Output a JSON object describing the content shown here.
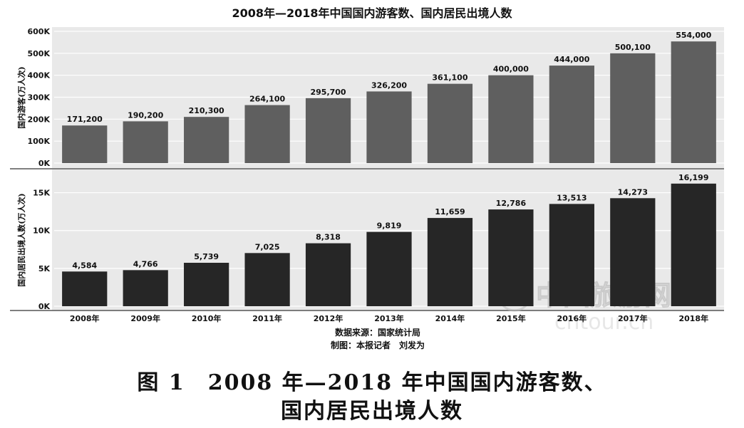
{
  "header": {
    "title": "2008年—2018年中国国内游客数、国内居民出境人数"
  },
  "chart_data": [
    {
      "type": "bar",
      "ylabel": "国内游客(万人次)",
      "categories": [
        "2008年",
        "2009年",
        "2010年",
        "2011年",
        "2012年",
        "2013年",
        "2014年",
        "2015年",
        "2016年",
        "2017年",
        "2018年"
      ],
      "values": [
        171200,
        190200,
        210300,
        264100,
        295700,
        326200,
        361100,
        400000,
        444000,
        500100,
        554000
      ],
      "value_labels": [
        "171,200",
        "190,200",
        "210,300",
        "264,100",
        "295,700",
        "326,200",
        "361,100",
        "400,000",
        "444,000",
        "500,100",
        "554,000"
      ],
      "ylim": [
        0,
        600000
      ],
      "yticks": [
        0,
        100000,
        200000,
        300000,
        400000,
        500000,
        600000
      ],
      "ytick_labels": [
        "0K",
        "100K",
        "200K",
        "300K",
        "400K",
        "500K",
        "600K"
      ],
      "grid": true,
      "bar_color": "#5f5f5f"
    },
    {
      "type": "bar",
      "ylabel": "国内居民出境人数(万人次)",
      "categories": [
        "2008年",
        "2009年",
        "2010年",
        "2011年",
        "2012年",
        "2013年",
        "2014年",
        "2015年",
        "2016年",
        "2017年",
        "2018年"
      ],
      "values": [
        4584,
        4766,
        5739,
        7025,
        8318,
        9819,
        11659,
        12786,
        13513,
        14273,
        16199
      ],
      "value_labels": [
        "4,584",
        "4,766",
        "5,739",
        "7,025",
        "8,318",
        "9,819",
        "11,659",
        "12,786",
        "13,513",
        "14,273",
        "16,199"
      ],
      "ylim": [
        0,
        17500
      ],
      "yticks": [
        0,
        5000,
        10000,
        15000
      ],
      "ytick_labels": [
        "0K",
        "5K",
        "10K",
        "15K"
      ],
      "grid": true,
      "bar_color": "#262626"
    }
  ],
  "footer": {
    "source": "数据来源：国家统计局",
    "credit": "制图：本报记者　刘发为"
  },
  "watermark": {
    "text": "中国旅游网",
    "url": "cntour.cn"
  },
  "caption": {
    "line1": "图 1　2008 年—2018 年中国国内游客数、",
    "line2": "国内居民出境人数"
  },
  "colors": {
    "panel_bg": "#e9e9e9",
    "grid": "#ffffff",
    "text": "#111111"
  }
}
